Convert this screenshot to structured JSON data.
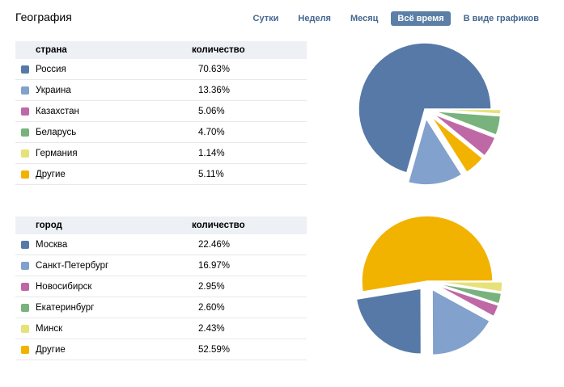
{
  "header": {
    "title": "География"
  },
  "tabs": [
    {
      "label": "Сутки"
    },
    {
      "label": "Неделя"
    },
    {
      "label": "Месяц"
    },
    {
      "label": "Всё время",
      "active": true
    },
    {
      "label": "В виде графиков"
    }
  ],
  "countries": {
    "col1": "страна",
    "col2": "количество",
    "rows": [
      {
        "name": "Россия",
        "value": "70.63%",
        "pct": 70.63,
        "color": "#5779a7"
      },
      {
        "name": "Украина",
        "value": "13.36%",
        "pct": 13.36,
        "color": "#82a1cc"
      },
      {
        "name": "Казахстан",
        "value": "5.06%",
        "pct": 5.06,
        "color": "#bf68a6"
      },
      {
        "name": "Беларусь",
        "value": "4.70%",
        "pct": 4.7,
        "color": "#78b27c"
      },
      {
        "name": "Германия",
        "value": "1.14%",
        "pct": 1.14,
        "color": "#e6e27a"
      },
      {
        "name": "Другие",
        "value": "5.11%",
        "pct": 5.11,
        "color": "#f2b200"
      }
    ]
  },
  "cities": {
    "col1": "город",
    "col2": "количество",
    "rows": [
      {
        "name": "Москва",
        "value": "22.46%",
        "pct": 22.46,
        "color": "#5779a7"
      },
      {
        "name": "Санкт-Петербург",
        "value": "16.97%",
        "pct": 16.97,
        "color": "#82a1cc"
      },
      {
        "name": "Новосибирск",
        "value": "2.95%",
        "pct": 2.95,
        "color": "#bf68a6"
      },
      {
        "name": "Екатеринбург",
        "value": "2.60%",
        "pct": 2.6,
        "color": "#78b27c"
      },
      {
        "name": "Минск",
        "value": "2.43%",
        "pct": 2.43,
        "color": "#e6e27a"
      },
      {
        "name": "Другие",
        "value": "52.59%",
        "pct": 52.59,
        "color": "#f2b200"
      }
    ]
  }
}
